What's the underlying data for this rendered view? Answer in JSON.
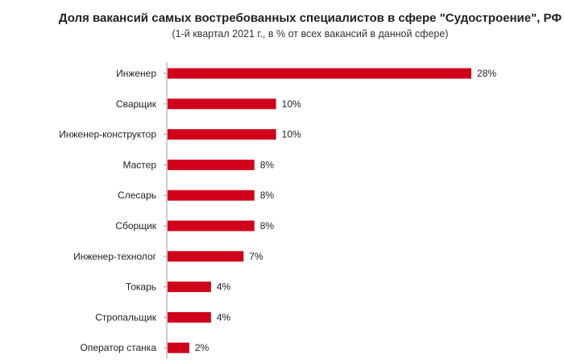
{
  "chart_data": {
    "type": "bar",
    "orientation": "horizontal",
    "title": "Доля вакансий самых востребованных специалистов в сфере \"Судостроение\", РФ",
    "subtitle": "(1-й квартал 2021 г., в % от всех вакансий в данной сфере)",
    "categories": [
      "Инженер",
      "Сварщик",
      "Инженер-конструктор",
      "Мастер",
      "Слесарь",
      "Сборщик",
      "Инженер-технолог",
      "Токарь",
      "Стропальщик",
      "Оператор станка"
    ],
    "values": [
      28,
      10,
      10,
      8,
      8,
      8,
      7,
      4,
      4,
      2
    ],
    "value_labels": [
      "28%",
      "10%",
      "10%",
      "8%",
      "8%",
      "8%",
      "7%",
      "4%",
      "4%",
      "2%"
    ],
    "xlim": [
      0,
      28
    ],
    "grid": false,
    "bar_color": "#d0021b",
    "axis_color": "#9a9a9a"
  }
}
